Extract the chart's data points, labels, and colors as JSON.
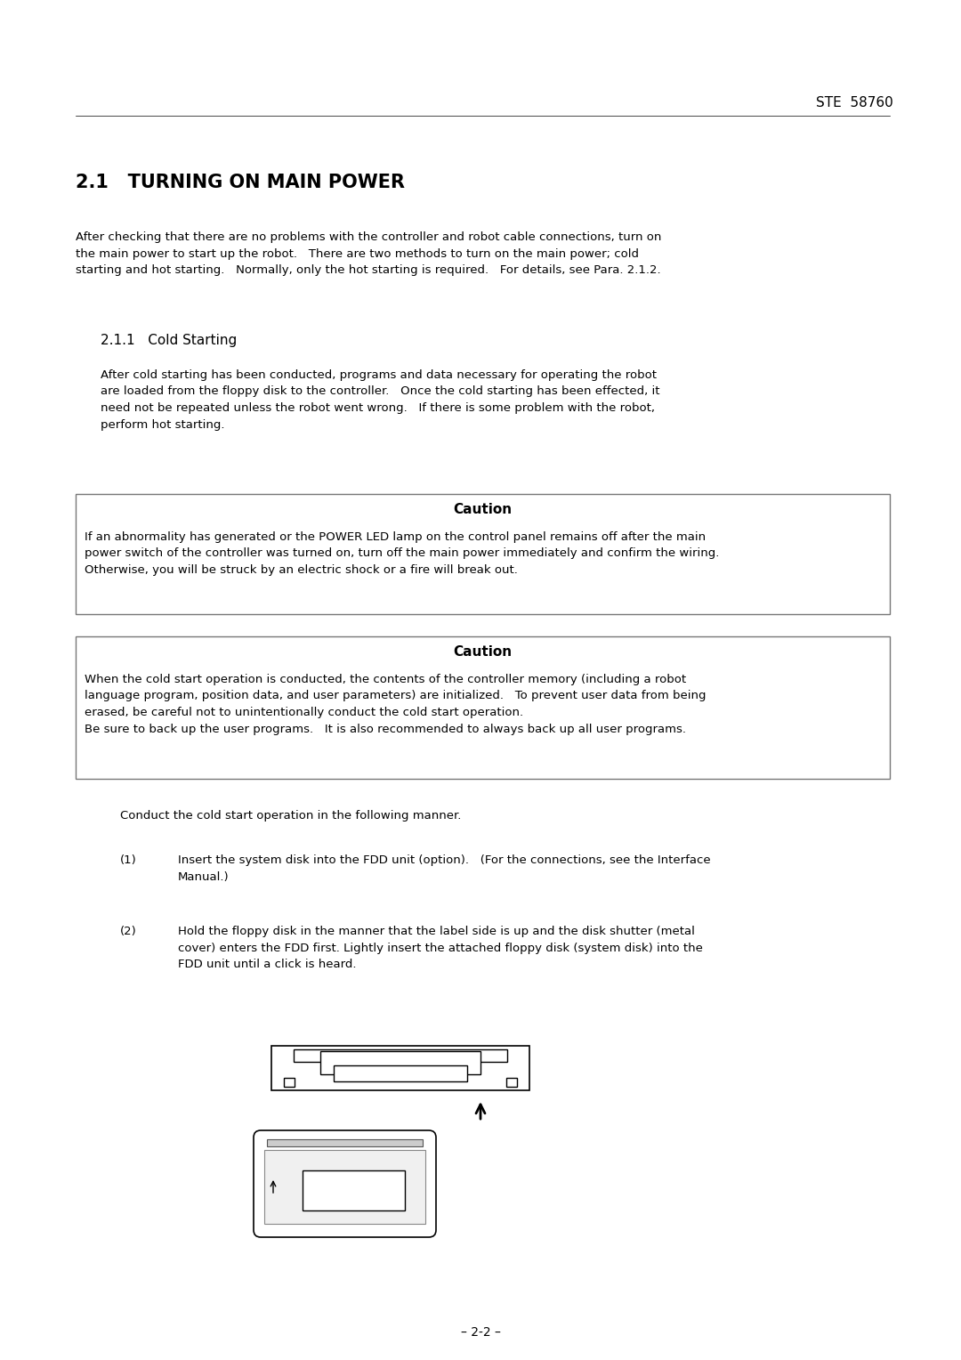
{
  "bg_color": "#ffffff",
  "header_text": "STE  58760",
  "title": "2.1   TURNING ON MAIN POWER",
  "intro_text": "After checking that there are no problems with the controller and robot cable connections, turn on\nthe main power to start up the robot.   There are two methods to turn on the main power; cold\nstarting and hot starting.   Normally, only the hot starting is required.   For details, see Para. 2.1.2.",
  "sub_title": "2.1.1   Cold Starting",
  "cold_start_text": "After cold starting has been conducted, programs and data necessary for operating the robot\nare loaded from the floppy disk to the controller.   Once the cold starting has been effected, it\nneed not be repeated unless the robot went wrong.   If there is some problem with the robot,\nperform hot starting.",
  "caution1_title": "Caution",
  "caution1_text": "If an abnormality has generated or the POWER LED lamp on the control panel remains off after the main\npower switch of the controller was turned on, turn off the main power immediately and confirm the wiring.\nOtherwise, you will be struck by an electric shock or a fire will break out.",
  "caution2_title": "Caution",
  "caution2_text": "When the cold start operation is conducted, the contents of the controller memory (including a robot\nlanguage program, position data, and user parameters) are initialized.   To prevent user data from being\nerased, be careful not to unintentionally conduct the cold start operation.\nBe sure to back up the user programs.   It is also recommended to always back up all user programs.",
  "conduct_text": "Conduct the cold start operation in the following manner.",
  "step1_num": "(1)",
  "step1_text": "Insert the system disk into the FDD unit (option).   (For the connections, see the Interface\nManual.)",
  "step2_num": "(2)",
  "step2_text": "Hold the floppy disk in the manner that the label side is up and the disk shutter (metal\ncover) enters the FDD first. Lightly insert the attached floppy disk (system disk) into the\nFDD unit until a click is heard.",
  "footer_text": "– 2-2 –"
}
